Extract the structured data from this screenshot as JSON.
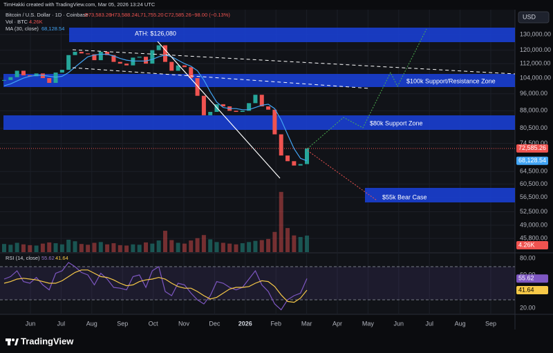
{
  "header": {
    "credit": "TimHakki created with TradingView.com, Mar 05, 2026 13:24 UTC",
    "symbol": "Bitcoin / U.S. Dollar · 1D · Coinbase",
    "ohlc": [
      "O73,583.26",
      "H73,588.24",
      "L71,755.20",
      "C72,585.26",
      "−98.00 (−0.13%)"
    ],
    "volume_legend": "Vol · BTC",
    "volume_value": "4.26K",
    "ma_legend": "MA (30, close)",
    "ma_value": "68,128.54",
    "rsi_legend": "RSI (14, close)",
    "rsi_value": "55.62",
    "rsi_ma_value": "41.64",
    "currency": "USD",
    "brand": "TradingView"
  },
  "chart_data": {
    "type": "candlestick",
    "categories": [
      "Jun",
      "Jul",
      "Aug",
      "Sep",
      "Oct",
      "Nov",
      "Dec",
      "2026",
      "Feb",
      "Mar",
      "Apr",
      "May",
      "Jun",
      "Jul",
      "Aug",
      "Sep"
    ],
    "close": [
      103000,
      104500,
      108000,
      105500,
      105000,
      106500,
      104000,
      101500,
      107000,
      108500,
      117000,
      119000,
      118000,
      117500,
      114000,
      119000,
      117000,
      113000,
      112000,
      111000,
      115500,
      116000,
      112000,
      120000,
      123000,
      113000,
      108000,
      111000,
      110000,
      104000,
      95000,
      86000,
      87500,
      91000,
      90000,
      88000,
      87500,
      88000,
      91500,
      95500,
      90000,
      88500,
      78000,
      70000,
      68000,
      66500,
      67000,
      72585.26
    ],
    "last_price_label": "72,585.26",
    "ma": {
      "name": "MA (30, close)",
      "color": "#42a5f5",
      "values": [
        100000,
        101000,
        102500,
        104000,
        105000,
        105500,
        105500,
        105000,
        104500,
        105000,
        107000,
        110000,
        113000,
        116000,
        117000,
        117500,
        117500,
        116500,
        115000,
        114000,
        113500,
        113500,
        113500,
        114500,
        116000,
        117000,
        116000,
        114000,
        112000,
        110500,
        108000,
        103000,
        97000,
        92000,
        89500,
        89000,
        89000,
        88500,
        88500,
        89500,
        90500,
        91000,
        89000,
        84000,
        78000,
        72500,
        69000,
        68128.54
      ]
    },
    "volume": [
      2100,
      1900,
      2400,
      2000,
      1800,
      1700,
      2200,
      2500,
      2300,
      2000,
      3200,
      2800,
      2100,
      1900,
      2400,
      2600,
      2000,
      2300,
      1800,
      1700,
      2000,
      1900,
      2500,
      2200,
      3000,
      5500,
      3100,
      2400,
      2200,
      3000,
      3600,
      4400,
      3300,
      2600,
      2400,
      2200,
      2000,
      2300,
      2600,
      2900,
      3100,
      3400,
      5200,
      15500,
      6200,
      4300,
      3900,
      4260
    ],
    "volume_ylim": [
      0,
      16000
    ],
    "up_color": "#26a69a",
    "down_color": "#ef5350",
    "ylim": [
      42700,
      147600
    ],
    "log_scale": true,
    "yticks": [
      {
        "value": 130000,
        "label": "130,000.00"
      },
      {
        "value": 120000,
        "label": "120,000.00"
      },
      {
        "value": 112000,
        "label": "112,000.00"
      },
      {
        "value": 104000,
        "label": "104,000.00"
      },
      {
        "value": 96000,
        "label": "96,000.00"
      },
      {
        "value": 88000,
        "label": "88,000.00"
      },
      {
        "value": 80500,
        "label": "80,500.00"
      },
      {
        "value": 74500,
        "label": "74,500.00"
      },
      {
        "value": 64500,
        "label": "64,500.00"
      },
      {
        "value": 60500,
        "label": "60,500.00"
      },
      {
        "value": 56500,
        "label": "56,500.00"
      },
      {
        "value": 52500,
        "label": "52,500.00"
      },
      {
        "value": 49000,
        "label": "49,000.00"
      },
      {
        "value": 45800,
        "label": "45,800.00"
      }
    ],
    "grid": true,
    "rsi": {
      "name": "RSI (14, close)",
      "color": "#7e57c2",
      "values": [
        55,
        58,
        65,
        52,
        50,
        57,
        48,
        42,
        62,
        65,
        75,
        70,
        63,
        60,
        48,
        62,
        55,
        45,
        44,
        42,
        58,
        60,
        45,
        65,
        70,
        40,
        35,
        50,
        48,
        38,
        30,
        25,
        35,
        52,
        50,
        45,
        42,
        45,
        55,
        65,
        48,
        40,
        25,
        18,
        30,
        35,
        38,
        55.62
      ]
    },
    "rsi_ma": {
      "color": "#f7c948",
      "values": [
        50,
        52,
        55,
        56,
        55,
        54,
        52,
        50,
        50,
        53,
        58,
        63,
        66,
        66,
        62,
        58,
        57,
        54,
        50,
        47,
        48,
        52,
        54,
        55,
        57,
        55,
        50,
        46,
        44,
        44,
        40,
        35,
        31,
        33,
        38,
        43,
        45,
        45,
        46,
        50,
        53,
        52,
        46,
        36,
        28,
        27,
        32,
        41.64
      ]
    },
    "rsi_ylim": [
      12.5,
      85
    ],
    "rsi_yticks": [
      {
        "value": 80,
        "label": "80.00"
      },
      {
        "value": 60,
        "label": "60.00"
      },
      {
        "value": 20,
        "label": "20.00"
      }
    ],
    "rsi_bands": [
      70,
      30
    ],
    "annotations": [
      "ATH: $126,080",
      "$100k Support/Resistance Zone",
      "$80k Support Zone",
      "$55k Bear Case"
    ]
  }
}
